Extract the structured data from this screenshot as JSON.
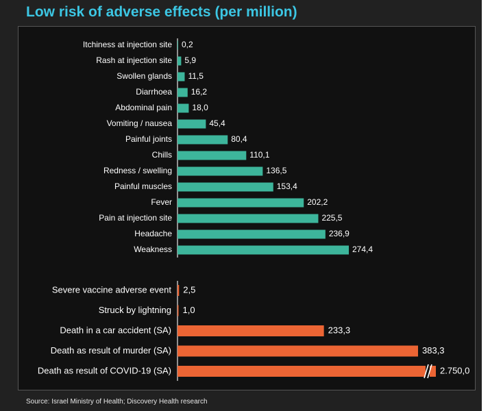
{
  "title": "Low risk of adverse effects (per million)",
  "source": "Source: Israel Ministry of Health; Discovery Health research",
  "colors": {
    "background": "#212121",
    "title": "#3cc6e3",
    "side_effects_bar": "#3db59b",
    "comparison_bar": "#ec6534",
    "text": "#ffffff"
  },
  "chart_data": [
    {
      "type": "bar",
      "orientation": "horizontal",
      "title": "",
      "categories": [
        "Itchiness at injection site",
        "Rash at injection site",
        "Swollen glands",
        "Diarrhoea",
        "Abdominal pain",
        "Vomiting / nausea",
        "Painful joints",
        "Chills",
        "Redness / swelling",
        "Painful muscles",
        "Fever",
        "Pain at injection site",
        "Headache",
        "Weakness"
      ],
      "values": [
        0.2,
        5.9,
        11.5,
        16.2,
        18.0,
        45.4,
        80.4,
        110.1,
        136.5,
        153.4,
        202.2,
        225.5,
        236.9,
        274.4
      ],
      "value_labels": [
        "0,2",
        "5,9",
        "11,5",
        "16,2",
        "18,0",
        "45,4",
        "80,4",
        "110,1",
        "136,5",
        "153,4",
        "202,2",
        "225,5",
        "236,9",
        "274,4"
      ],
      "color": "#3db59b",
      "grid": false
    },
    {
      "type": "bar",
      "orientation": "horizontal",
      "title": "",
      "categories": [
        "Severe vaccine adverse event",
        "Struck by lightning",
        "Death in a car accident (SA)",
        "Death as result of murder (SA)",
        "Death as result of COVID-19 (SA)"
      ],
      "values": [
        2.5,
        1.0,
        233.3,
        383.3,
        2750.0
      ],
      "value_labels": [
        "2,5",
        "1,0",
        "233,3",
        "383,3",
        "2.750,0"
      ],
      "axis_break": true,
      "color": "#ec6534",
      "grid": false
    }
  ]
}
